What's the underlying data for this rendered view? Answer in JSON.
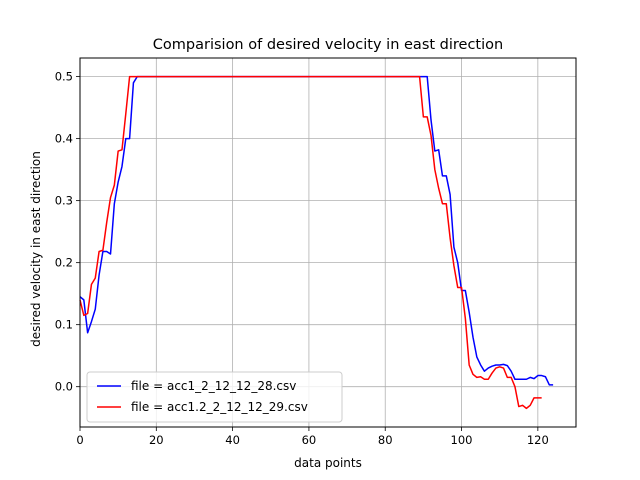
{
  "chart_data": {
    "type": "line",
    "title": "Comparision of desired velocity in east direction",
    "xlabel": "data points",
    "ylabel": "desired velocity in east direction",
    "xlim": [
      0,
      130
    ],
    "ylim": [
      -0.065,
      0.53
    ],
    "xticks": [
      0,
      20,
      40,
      60,
      80,
      100,
      120
    ],
    "yticks": [
      0.0,
      0.1,
      0.2,
      0.3,
      0.4,
      0.5
    ],
    "grid": true,
    "legend_position": "lower-left",
    "series": [
      {
        "name": "file = acc1_2_12_12_28.csv",
        "color": "#0000ff",
        "x": [
          0,
          1,
          2,
          3,
          4,
          5,
          6,
          7,
          8,
          9,
          10,
          11,
          12,
          13,
          14,
          15,
          20,
          40,
          60,
          80,
          88,
          89,
          90,
          91,
          92,
          93,
          94,
          95,
          96,
          97,
          98,
          99,
          100,
          101,
          102,
          103,
          104,
          105,
          106,
          107,
          108,
          109,
          110,
          111,
          112,
          113,
          114,
          115,
          116,
          117,
          118,
          119,
          120,
          121,
          122,
          123,
          124
        ],
        "y": [
          0.145,
          0.14,
          0.087,
          0.105,
          0.125,
          0.18,
          0.218,
          0.218,
          0.214,
          0.295,
          0.33,
          0.355,
          0.4,
          0.4,
          0.49,
          0.5,
          0.5,
          0.5,
          0.5,
          0.5,
          0.5,
          0.5,
          0.5,
          0.5,
          0.43,
          0.38,
          0.382,
          0.34,
          0.34,
          0.31,
          0.225,
          0.2,
          0.155,
          0.155,
          0.12,
          0.08,
          0.048,
          0.035,
          0.025,
          0.03,
          0.033,
          0.035,
          0.035,
          0.036,
          0.034,
          0.025,
          0.012,
          0.012,
          0.012,
          0.012,
          0.015,
          0.013,
          0.018,
          0.018,
          0.016,
          0.003,
          0.003
        ]
      },
      {
        "name": "file = acc1.2_2_12_12_29.csv",
        "color": "#ff0000",
        "x": [
          0,
          1,
          2,
          3,
          4,
          5,
          6,
          7,
          8,
          9,
          10,
          11,
          12,
          13,
          14,
          20,
          40,
          60,
          80,
          89,
          90,
          91,
          92,
          93,
          94,
          95,
          96,
          97,
          98,
          99,
          100,
          101,
          102,
          103,
          104,
          105,
          106,
          107,
          108,
          109,
          110,
          111,
          112,
          113,
          114,
          115,
          116,
          117,
          118,
          119,
          120,
          121
        ],
        "y": [
          0.14,
          0.115,
          0.118,
          0.165,
          0.175,
          0.218,
          0.22,
          0.265,
          0.305,
          0.325,
          0.38,
          0.382,
          0.44,
          0.5,
          0.5,
          0.5,
          0.5,
          0.5,
          0.5,
          0.5,
          0.435,
          0.435,
          0.405,
          0.35,
          0.32,
          0.295,
          0.295,
          0.24,
          0.195,
          0.16,
          0.16,
          0.11,
          0.035,
          0.02,
          0.015,
          0.016,
          0.012,
          0.012,
          0.022,
          0.03,
          0.032,
          0.03,
          0.015,
          0.015,
          0.0,
          -0.032,
          -0.03,
          -0.035,
          -0.03,
          -0.018,
          -0.018,
          -0.018
        ]
      }
    ]
  }
}
